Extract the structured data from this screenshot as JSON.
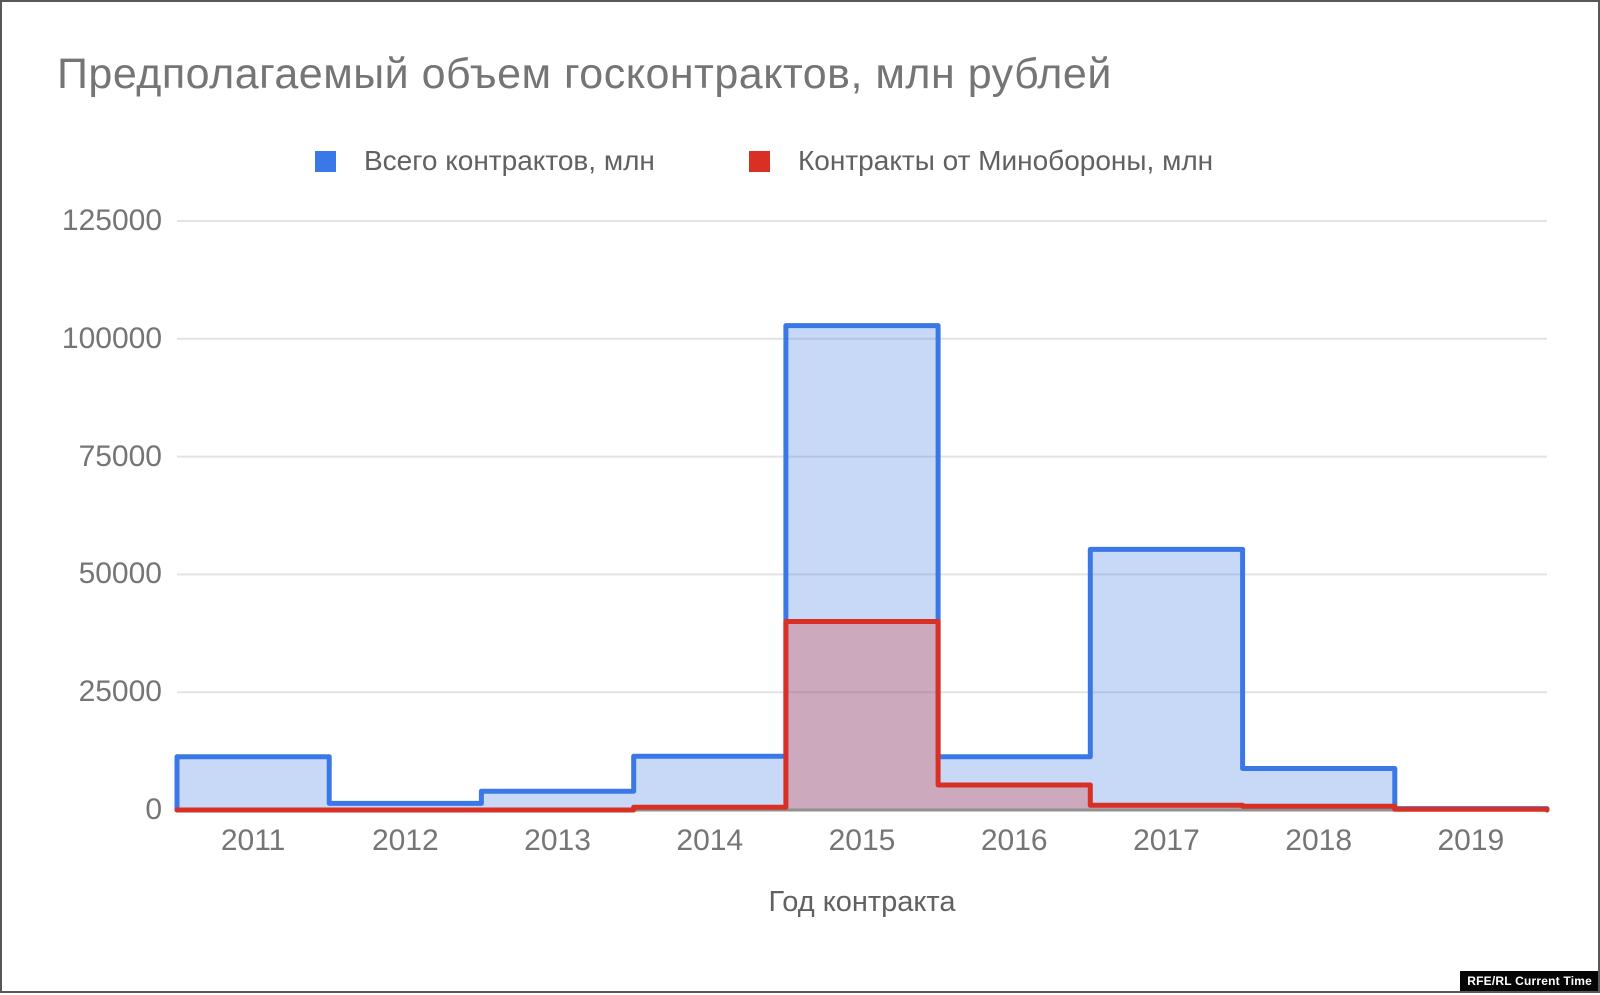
{
  "frame": {
    "watermark": "RFE/RL Current Time"
  },
  "chart_data": {
    "type": "stepped-area",
    "title": "Предполагаемый объем госконтрактов, млн рублей",
    "xlabel": "Год контракта",
    "ylabel": "",
    "categories": [
      "2011",
      "2012",
      "2013",
      "2014",
      "2015",
      "2016",
      "2017",
      "2018",
      "2019"
    ],
    "series": [
      {
        "name": "Всего контрактов, млн",
        "color": "#3B78E7",
        "fill_rgba": "rgba(59,120,231,0.28)",
        "values": [
          11300,
          1400,
          4000,
          11400,
          102800,
          11300,
          55300,
          8800,
          300
        ]
      },
      {
        "name": "Контракты от Минобороны, млн",
        "color": "#D93025",
        "fill_rgba": "rgba(217,48,37,0.28)",
        "values": [
          0,
          0,
          0,
          600,
          40000,
          5300,
          1000,
          800,
          150
        ]
      }
    ],
    "ylim": [
      0,
      125000
    ],
    "yticks": [
      0,
      25000,
      50000,
      75000,
      100000,
      125000
    ],
    "grid": true,
    "gridline_color": "#e3e3e3",
    "baseline_color": "#8f8f8f",
    "legend_position": "top"
  }
}
